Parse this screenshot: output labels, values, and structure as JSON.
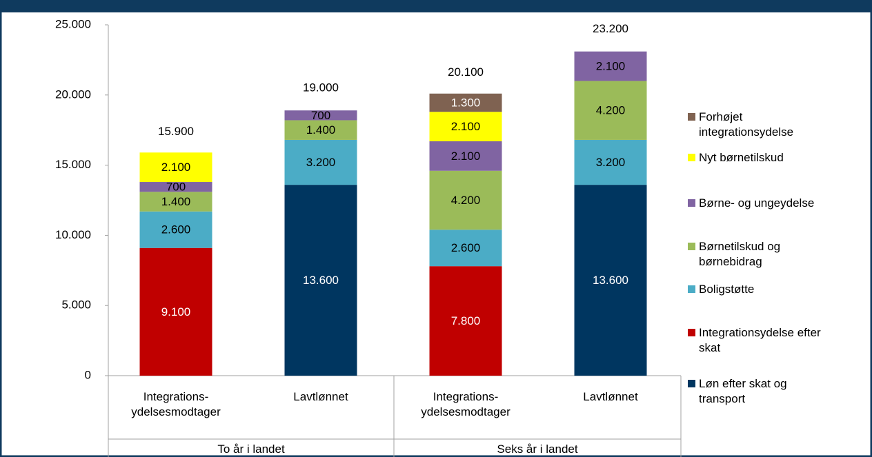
{
  "chart_data": {
    "type": "stacked_bar",
    "categories": [
      "Integrations-ydelsesmodtager",
      "Lavtlønnet",
      "Integrations-ydelsesmodtager",
      "Lavtlønnet"
    ],
    "groups": [
      "To år i landet",
      "Seks år i landet"
    ],
    "ylim": [
      0,
      25000
    ],
    "yticks": [
      {
        "value": 0,
        "label": "0"
      },
      {
        "value": 5000,
        "label": "5.000"
      },
      {
        "value": 10000,
        "label": "10.000"
      },
      {
        "value": 15000,
        "label": "15.000"
      },
      {
        "value": 20000,
        "label": "20.000"
      },
      {
        "value": 25000,
        "label": "25.000"
      }
    ],
    "series": [
      {
        "name": "Løn efter skat og transport",
        "color": "#003660",
        "values": [
          null,
          13600,
          null,
          13600
        ],
        "value_labels": [
          null,
          "13.600",
          null,
          "13.600"
        ]
      },
      {
        "name": "Integrationsydelse efter skat",
        "color": "#c00000",
        "values": [
          9100,
          null,
          7800,
          null
        ],
        "value_labels": [
          "9.100",
          null,
          "7.800",
          null
        ]
      },
      {
        "name": "Boligstøtte",
        "color": "#4bacc6",
        "values": [
          2600,
          3200,
          2600,
          3200
        ],
        "value_labels": [
          "2.600",
          "3.200",
          "2.600",
          "3.200"
        ]
      },
      {
        "name": "Børnetilskud og børnebidrag",
        "color": "#9bbb59",
        "values": [
          1400,
          1400,
          4200,
          4200
        ],
        "value_labels": [
          "1.400",
          "1.400",
          "4.200",
          "4.200"
        ]
      },
      {
        "name": "Børne- og ungeydelse",
        "color": "#8064a2",
        "values": [
          700,
          700,
          2100,
          2100
        ],
        "value_labels": [
          "700",
          "700",
          "2.100",
          "2.100"
        ]
      },
      {
        "name": "Nyt børnetilskud",
        "color": "#ffff00",
        "values": [
          2100,
          null,
          2100,
          null
        ],
        "value_labels": [
          "2.100",
          null,
          "2.100",
          null
        ]
      },
      {
        "name": "Forhøjet integrationsydelse",
        "color": "#7f6251",
        "values": [
          null,
          null,
          1300,
          null
        ],
        "value_labels": [
          null,
          null,
          "1.300",
          null
        ]
      }
    ],
    "totals": {
      "values": [
        15900,
        19000,
        20100,
        23200
      ],
      "value_labels": [
        "15.900",
        "19.000",
        "20.100",
        "23.200"
      ]
    }
  }
}
